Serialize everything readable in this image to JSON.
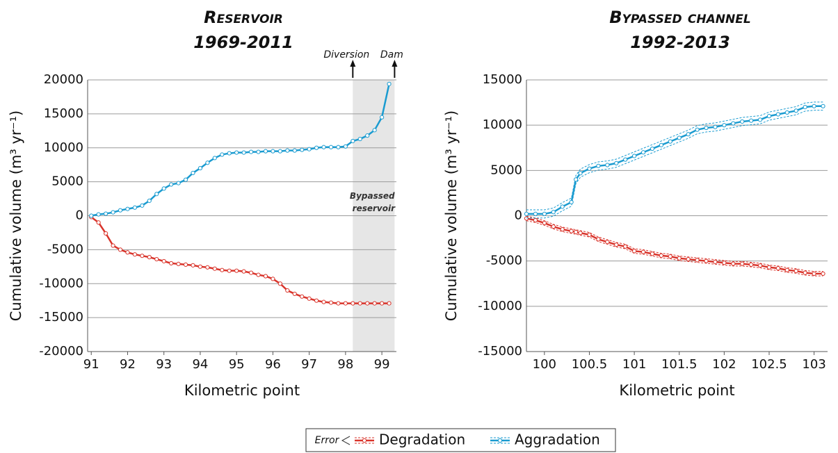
{
  "chart_data": [
    {
      "type": "line",
      "title": "Reservoir",
      "subtitle": "1969-2011",
      "x_label": "Kilometric point",
      "y_label": "Cumulative volume (m³ yr⁻¹)",
      "x": [
        91.0,
        91.2,
        91.4,
        91.6,
        91.8,
        92.0,
        92.2,
        92.4,
        92.6,
        92.8,
        93.0,
        93.2,
        93.4,
        93.6,
        93.8,
        94.0,
        94.2,
        94.4,
        94.6,
        94.8,
        95.0,
        95.2,
        95.4,
        95.6,
        95.8,
        96.0,
        96.2,
        96.4,
        96.6,
        96.8,
        97.0,
        97.2,
        97.4,
        97.6,
        97.8,
        98.0,
        98.2,
        98.4,
        98.6,
        98.8,
        99.0,
        99.2
      ],
      "series": [
        {
          "name": "Degradation",
          "color": "#d9342b",
          "values": [
            -200,
            -1000,
            -2600,
            -4400,
            -5000,
            -5400,
            -5700,
            -5900,
            -6100,
            -6400,
            -6700,
            -7000,
            -7100,
            -7200,
            -7300,
            -7500,
            -7600,
            -7800,
            -8000,
            -8100,
            -8100,
            -8200,
            -8400,
            -8700,
            -8900,
            -9300,
            -10000,
            -11000,
            -11500,
            -11900,
            -12200,
            -12500,
            -12700,
            -12800,
            -12900,
            -12900,
            -12900,
            -12900,
            -12900,
            -12900,
            -12900,
            -12900
          ]
        },
        {
          "name": "Aggradation",
          "color": "#1a9bd0",
          "values": [
            0,
            200,
            300,
            500,
            800,
            1000,
            1200,
            1500,
            2200,
            3200,
            4000,
            4600,
            4800,
            5300,
            6300,
            7000,
            7800,
            8500,
            9000,
            9200,
            9300,
            9300,
            9400,
            9400,
            9500,
            9500,
            9500,
            9600,
            9600,
            9700,
            9800,
            10000,
            10100,
            10100,
            10100,
            10200,
            11000,
            11300,
            11800,
            12600,
            14500,
            19400
          ]
        }
      ],
      "xlim": [
        90.9,
        99.4
      ],
      "xticks": [
        91,
        92,
        93,
        94,
        95,
        96,
        97,
        98,
        99
      ],
      "ylim": [
        -20000,
        20000
      ],
      "yticks": [
        -20000,
        -15000,
        -10000,
        -5000,
        0,
        5000,
        10000,
        15000,
        20000
      ],
      "grid": true,
      "shade": {
        "x": [
          98.2,
          99.35
        ],
        "label": "Bypassed reservoir"
      },
      "annotations": [
        {
          "text": "Diversion",
          "x": 98.2
        },
        {
          "text": "Dam",
          "x": 99.35
        }
      ]
    },
    {
      "type": "line",
      "title": "Bypassed channel",
      "subtitle": "1992-2013",
      "x_label": "Kilometric point",
      "y_label": "Cumulative volume (m³ yr⁻¹)",
      "x": [
        99.8,
        99.9,
        100.0,
        100.1,
        100.2,
        100.3,
        100.35,
        100.4,
        100.5,
        100.6,
        100.7,
        100.8,
        100.9,
        101.0,
        101.1,
        101.2,
        101.3,
        101.4,
        101.5,
        101.6,
        101.7,
        101.8,
        101.9,
        102.0,
        102.1,
        102.2,
        102.3,
        102.4,
        102.5,
        102.6,
        102.7,
        102.8,
        102.9,
        103.0,
        103.1
      ],
      "series": [
        {
          "name": "Degradation",
          "color": "#d9342b",
          "error": 250,
          "values": [
            -300,
            -500,
            -800,
            -1200,
            -1500,
            -1700,
            -1800,
            -1900,
            -2100,
            -2600,
            -2900,
            -3200,
            -3400,
            -3900,
            -4000,
            -4200,
            -4400,
            -4500,
            -4700,
            -4800,
            -4900,
            -5000,
            -5100,
            -5200,
            -5300,
            -5300,
            -5400,
            -5500,
            -5700,
            -5800,
            -6000,
            -6100,
            -6300,
            -6400,
            -6400
          ]
        },
        {
          "name": "Aggradation",
          "color": "#1a9bd0",
          "error": 450,
          "values": [
            200,
            200,
            200,
            400,
            1000,
            1500,
            4000,
            4700,
            5200,
            5500,
            5600,
            5800,
            6200,
            6600,
            7000,
            7400,
            7800,
            8200,
            8600,
            9000,
            9500,
            9700,
            9800,
            10000,
            10200,
            10400,
            10500,
            10600,
            11000,
            11200,
            11400,
            11600,
            12000,
            12100,
            12100
          ]
        }
      ],
      "xlim": [
        99.8,
        103.15
      ],
      "xticks": [
        100,
        100.5,
        101,
        101.5,
        102,
        102.5,
        103
      ],
      "ylim": [
        -15000,
        15000
      ],
      "yticks": [
        -15000,
        -10000,
        -5000,
        0,
        5000,
        10000,
        15000
      ],
      "grid": true
    }
  ],
  "legend": {
    "error_label": "Error"
  }
}
